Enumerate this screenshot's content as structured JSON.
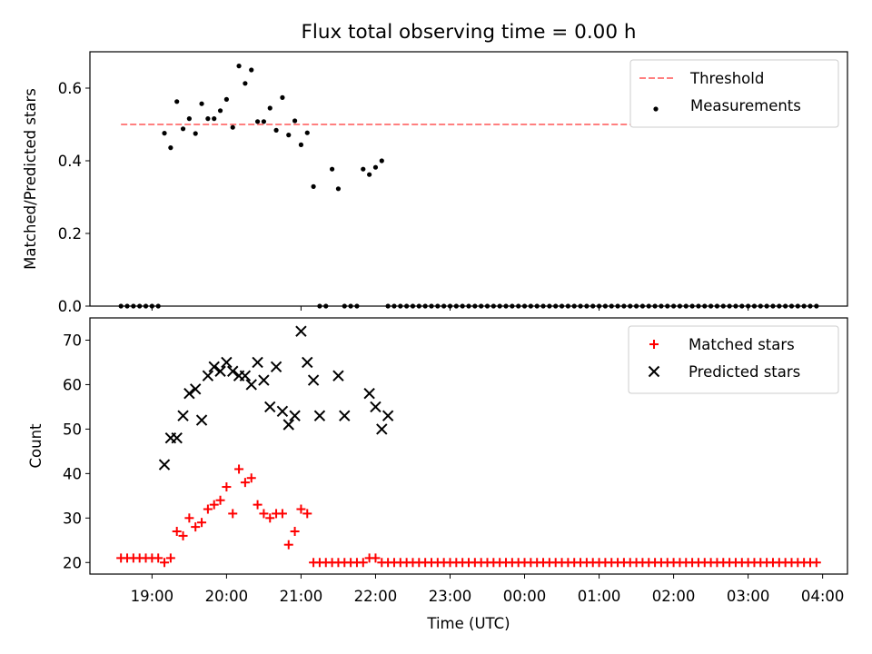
{
  "figure": {
    "title": "Flux total observing time = 0.00 h"
  },
  "chart_data": [
    {
      "type": "scatter",
      "panel": "top",
      "ylabel": "Matched/Predicted stars",
      "xlabel": "",
      "xlim": [
        "18:10",
        "04:20"
      ],
      "ylim": [
        0,
        0.7
      ],
      "yticks": [
        0.0,
        0.2,
        0.4,
        0.6
      ],
      "ytick_labels": [
        "0.0",
        "0.2",
        "0.4",
        "0.6"
      ],
      "xticks": [
        "19:00",
        "21:00",
        "23:00",
        "01:00",
        "03:00"
      ],
      "grid": false,
      "legend_position": "top-right",
      "threshold": {
        "name": "Threshold",
        "value": 0.5,
        "x_range": [
          "18:35",
          "03:55"
        ],
        "color": "#ff7f7f",
        "style": "dashed"
      },
      "series": [
        {
          "name": "Measurements",
          "color": "#000000",
          "marker": "dot",
          "x": [
            "18:35",
            "18:40",
            "18:45",
            "18:50",
            "18:55",
            "19:00",
            "19:05",
            "19:10",
            "19:15",
            "19:20",
            "19:25",
            "19:30",
            "19:35",
            "19:40",
            "19:45",
            "19:50",
            "19:55",
            "20:00",
            "20:05",
            "20:10",
            "20:15",
            "20:20",
            "20:25",
            "20:30",
            "20:35",
            "20:40",
            "20:45",
            "20:50",
            "20:55",
            "21:00",
            "21:05",
            "21:10",
            "21:15",
            "21:20",
            "21:25",
            "21:30",
            "21:35",
            "21:40",
            "21:45",
            "21:50",
            "21:55",
            "22:00",
            "22:05",
            "22:10",
            "22:15",
            "22:20",
            "22:25",
            "22:30",
            "22:35",
            "22:40",
            "22:45",
            "22:50",
            "22:55",
            "23:00",
            "23:05",
            "23:10",
            "23:15",
            "23:20",
            "23:25",
            "23:30",
            "23:35",
            "23:40",
            "23:45",
            "23:50",
            "23:55",
            "00:00",
            "00:05",
            "00:10",
            "00:15",
            "00:20",
            "00:25",
            "00:30",
            "00:35",
            "00:40",
            "00:45",
            "00:50",
            "00:55",
            "01:00",
            "01:05",
            "01:10",
            "01:15",
            "01:20",
            "01:25",
            "01:30",
            "01:35",
            "01:40",
            "01:45",
            "01:50",
            "01:55",
            "02:00",
            "02:05",
            "02:10",
            "02:15",
            "02:20",
            "02:25",
            "02:30",
            "02:35",
            "02:40",
            "02:45",
            "02:50",
            "02:55",
            "03:00",
            "03:05",
            "03:10",
            "03:15",
            "03:20",
            "03:25",
            "03:30",
            "03:35",
            "03:40",
            "03:45",
            "03:50",
            "03:55"
          ],
          "y": [
            0,
            0,
            0,
            0,
            0,
            0,
            0,
            0.476,
            0.436,
            0.563,
            0.488,
            0.516,
            0.475,
            0.557,
            0.516,
            0.516,
            0.538,
            0.569,
            0.492,
            0.661,
            0.613,
            0.65,
            0.508,
            0.508,
            0.545,
            0.484,
            0.574,
            0.471,
            0.51,
            0.444,
            0.477,
            0.329,
            0,
            0,
            0.377,
            0.323,
            0,
            0,
            0,
            0.377,
            0.362,
            0.382,
            0.4,
            0,
            0,
            0,
            0,
            0,
            0,
            0,
            0,
            0,
            0,
            0,
            0,
            0,
            0,
            0,
            0,
            0,
            0,
            0,
            0,
            0,
            0,
            0,
            0,
            0,
            0,
            0,
            0,
            0,
            0,
            0,
            0,
            0,
            0,
            0,
            0,
            0,
            0,
            0,
            0,
            0,
            0,
            0,
            0,
            0,
            0,
            0,
            0,
            0,
            0,
            0,
            0,
            0,
            0,
            0,
            0,
            0,
            0,
            0,
            0,
            0,
            0,
            0,
            0,
            0,
            0,
            0,
            0,
            0,
            0
          ]
        }
      ]
    },
    {
      "type": "scatter",
      "panel": "bottom",
      "ylabel": "Count",
      "xlabel": "Time (UTC)",
      "xlim": [
        "18:10",
        "04:20"
      ],
      "ylim": [
        17.4,
        75
      ],
      "yticks": [
        20,
        30,
        40,
        50,
        60,
        70
      ],
      "ytick_labels": [
        "20",
        "30",
        "40",
        "50",
        "60",
        "70"
      ],
      "xticks": [
        "19:00",
        "20:00",
        "21:00",
        "22:00",
        "23:00",
        "00:00",
        "01:00",
        "02:00",
        "03:00",
        "04:00"
      ],
      "grid": false,
      "legend_position": "top-right",
      "series": [
        {
          "name": "Matched stars",
          "color": "#ff0000",
          "marker": "plus",
          "x": [
            "18:35",
            "18:40",
            "18:45",
            "18:50",
            "18:55",
            "19:00",
            "19:05",
            "19:10",
            "19:15",
            "19:20",
            "19:25",
            "19:30",
            "19:35",
            "19:40",
            "19:45",
            "19:50",
            "19:55",
            "20:00",
            "20:05",
            "20:10",
            "20:15",
            "20:20",
            "20:25",
            "20:30",
            "20:35",
            "20:40",
            "20:45",
            "20:50",
            "20:55",
            "21:00",
            "21:05",
            "21:10",
            "21:15",
            "21:20",
            "21:25",
            "21:30",
            "21:35",
            "21:40",
            "21:45",
            "21:50",
            "21:55",
            "22:00",
            "22:05",
            "22:10",
            "22:15",
            "22:20",
            "22:25",
            "22:30",
            "22:35",
            "22:40",
            "22:45",
            "22:50",
            "22:55",
            "23:00",
            "23:05",
            "23:10",
            "23:15",
            "23:20",
            "23:25",
            "23:30",
            "23:35",
            "23:40",
            "23:45",
            "23:50",
            "23:55",
            "00:00",
            "00:05",
            "00:10",
            "00:15",
            "00:20",
            "00:25",
            "00:30",
            "00:35",
            "00:40",
            "00:45",
            "00:50",
            "00:55",
            "01:00",
            "01:05",
            "01:10",
            "01:15",
            "01:20",
            "01:25",
            "01:30",
            "01:35",
            "01:40",
            "01:45",
            "01:50",
            "01:55",
            "02:00",
            "02:05",
            "02:10",
            "02:15",
            "02:20",
            "02:25",
            "02:30",
            "02:35",
            "02:40",
            "02:45",
            "02:50",
            "02:55",
            "03:00",
            "03:05",
            "03:10",
            "03:15",
            "03:20",
            "03:25",
            "03:30",
            "03:35",
            "03:40",
            "03:45",
            "03:50",
            "03:55"
          ],
          "y": [
            21,
            21,
            21,
            21,
            21,
            21,
            21,
            20,
            21,
            27,
            26,
            30,
            28,
            29,
            32,
            33,
            34,
            37,
            31,
            41,
            38,
            39,
            33,
            31,
            30,
            31,
            31,
            24,
            27,
            32,
            31,
            20,
            20,
            20,
            20,
            20,
            20,
            20,
            20,
            20,
            21,
            21,
            20,
            20,
            20,
            20,
            20,
            20,
            20,
            20,
            20,
            20,
            20,
            20,
            20,
            20,
            20,
            20,
            20,
            20,
            20,
            20,
            20,
            20,
            20,
            20,
            20,
            20,
            20,
            20,
            20,
            20,
            20,
            20,
            20,
            20,
            20,
            20,
            20,
            20,
            20,
            20,
            20,
            20,
            20,
            20,
            20,
            20,
            20,
            20,
            20,
            20,
            20,
            20,
            20,
            20,
            20,
            20,
            20,
            20,
            20,
            20,
            20,
            20,
            20,
            20,
            20,
            20,
            20,
            20,
            20,
            20,
            20
          ]
        },
        {
          "name": "Predicted stars",
          "color": "#000000",
          "marker": "x",
          "x": [
            "19:10",
            "19:15",
            "19:20",
            "19:25",
            "19:30",
            "19:35",
            "19:40",
            "19:45",
            "19:50",
            "19:55",
            "20:00",
            "20:05",
            "20:10",
            "20:15",
            "20:20",
            "20:25",
            "20:30",
            "20:35",
            "20:40",
            "20:45",
            "20:50",
            "20:55",
            "21:00",
            "21:05",
            "21:10",
            "21:15",
            "21:30",
            "21:35",
            "21:55",
            "22:00",
            "22:05",
            "22:10"
          ],
          "y": [
            42,
            48,
            48,
            53,
            58,
            59,
            52,
            62,
            64,
            63,
            65,
            63,
            62,
            62,
            60,
            65,
            61,
            55,
            64,
            54,
            51,
            53,
            72,
            65,
            61,
            53,
            62,
            53,
            58,
            55,
            50,
            53
          ]
        }
      ]
    }
  ]
}
